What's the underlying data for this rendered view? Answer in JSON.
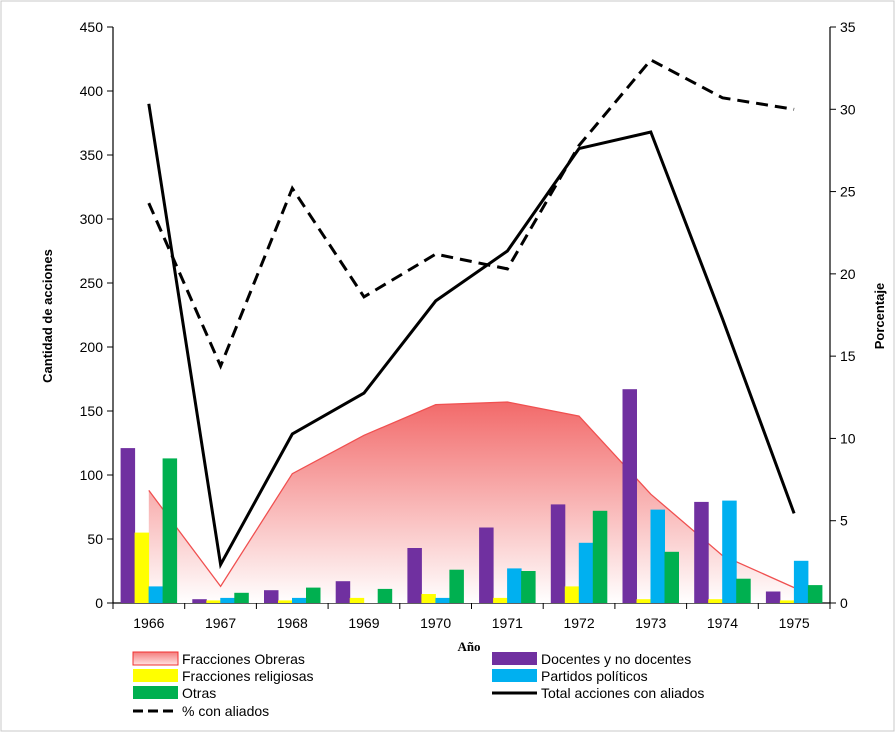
{
  "chart_data": {
    "type": "bar",
    "title": "",
    "xlabel": "Año",
    "ylabel_left": "Cantidad de acciones",
    "ylabel_right": "Porcentaje",
    "categories": [
      "1966",
      "1967",
      "1968",
      "1969",
      "1970",
      "1971",
      "1972",
      "1973",
      "1974",
      "1975"
    ],
    "ylim_left": [
      0,
      450
    ],
    "yticks_left": [
      "0",
      "50",
      "100",
      "150",
      "200",
      "250",
      "300",
      "350",
      "400",
      "450"
    ],
    "ylim_right": [
      0,
      35
    ],
    "yticks_right": [
      "0",
      "5",
      "10",
      "15",
      "20",
      "25",
      "30",
      "35"
    ],
    "area_series": {
      "name": "Fracciones Obreras",
      "color": "#f05050",
      "values": [
        88,
        13,
        101,
        131,
        155,
        157,
        146,
        85,
        37,
        12
      ]
    },
    "bar_series": [
      {
        "name": "Docentes y no docentes",
        "color": "#7030a0",
        "values": [
          121,
          3,
          10,
          17,
          43,
          59,
          77,
          167,
          79,
          9
        ]
      },
      {
        "name": "Fracciones religiosas",
        "color": "#ffff00",
        "values": [
          55,
          2,
          2,
          4,
          7,
          4,
          13,
          3,
          3,
          2
        ]
      },
      {
        "name": "Partidos políticos",
        "color": "#00b0f0",
        "values": [
          13,
          4,
          4,
          0,
          4,
          27,
          47,
          73,
          80,
          33
        ]
      },
      {
        "name": "Otras",
        "color": "#00b050",
        "values": [
          113,
          8,
          12,
          11,
          26,
          25,
          72,
          40,
          19,
          14
        ]
      }
    ],
    "line_series": [
      {
        "name": "Total acciones con aliados",
        "axis": "left",
        "style": "solid",
        "color": "#000000",
        "values": [
          390,
          30,
          132,
          164,
          236,
          275,
          355,
          368,
          222,
          70
        ]
      },
      {
        "name": "% con aliados",
        "axis": "right",
        "style": "dashed",
        "color": "#000000",
        "values": [
          24.3,
          14.4,
          25.2,
          18.6,
          21.2,
          20.3,
          27.8,
          33.0,
          30.7,
          30.0
        ]
      }
    ],
    "legend": {
      "position": "bottom",
      "items": [
        {
          "label": "Fracciones Obreras",
          "kind": "area"
        },
        {
          "label": "Docentes y no docentes",
          "kind": "bar",
          "color": "#7030a0"
        },
        {
          "label": "Fracciones religiosas",
          "kind": "bar",
          "color": "#ffff00"
        },
        {
          "label": "Partidos políticos",
          "kind": "bar",
          "color": "#00b0f0"
        },
        {
          "label": "Otras",
          "kind": "bar",
          "color": "#00b050"
        },
        {
          "label": "Total acciones con aliados",
          "kind": "line-solid"
        },
        {
          "label": "% con aliados",
          "kind": "line-dashed"
        }
      ]
    },
    "grid": false
  }
}
